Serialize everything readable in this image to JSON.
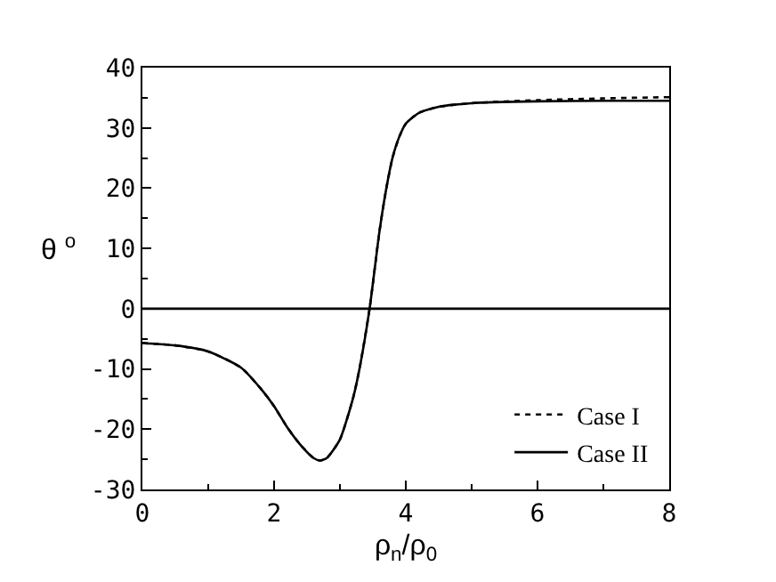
{
  "chart_data": {
    "type": "line",
    "xlabel": "ρ$_{n}$/ρ$_{0}$",
    "ylabel": "θ $^{o}$",
    "xlim": [
      0,
      8
    ],
    "xticks": [
      0,
      2,
      4,
      6,
      8
    ],
    "ylim": [
      -30,
      40
    ],
    "yticks": [
      -30,
      -20,
      -10,
      0,
      10,
      20,
      30,
      40
    ],
    "grid": false,
    "legend": "bottom right",
    "marker": "none",
    "ref_lines": [
      {
        "axis": "y",
        "value": 0,
        "color": "#000000",
        "line_style": "solid"
      }
    ],
    "series": [
      {
        "name": "Case I",
        "color": "#000000",
        "line_style": "dotted",
        "x": [
          0,
          0.5,
          1,
          1.5,
          1.8,
          2,
          2.2,
          2.4,
          2.6,
          2.7,
          2.8,
          3.0,
          3.2,
          3.3,
          3.45,
          3.6,
          3.7,
          3.8,
          3.9,
          4.0,
          4.2,
          4.5,
          5,
          6,
          7,
          8
        ],
        "values": [
          -5.7,
          -6.1,
          -7.1,
          -9.8,
          -13.3,
          -16.2,
          -19.7,
          -22.6,
          -24.8,
          -25.2,
          -24.8,
          -21.7,
          -14.8,
          -9.8,
          0,
          12.8,
          19.7,
          25.1,
          28.5,
          30.7,
          32.5,
          33.5,
          34.1,
          34.6,
          34.9,
          35.1
        ]
      },
      {
        "name": "Case II",
        "color": "#000000",
        "line_style": "solid",
        "x": [
          0,
          0.5,
          1,
          1.5,
          1.8,
          2,
          2.2,
          2.4,
          2.6,
          2.7,
          2.8,
          3.0,
          3.2,
          3.3,
          3.45,
          3.6,
          3.7,
          3.8,
          3.9,
          4.0,
          4.2,
          4.5,
          5,
          6,
          7,
          8
        ],
        "values": [
          -5.7,
          -6.1,
          -7.1,
          -9.8,
          -13.3,
          -16.2,
          -19.7,
          -22.6,
          -24.8,
          -25.2,
          -24.8,
          -21.7,
          -14.8,
          -9.8,
          0,
          12.8,
          19.7,
          25.1,
          28.5,
          30.7,
          32.5,
          33.5,
          34.1,
          34.4,
          34.5,
          34.5
        ]
      }
    ]
  }
}
